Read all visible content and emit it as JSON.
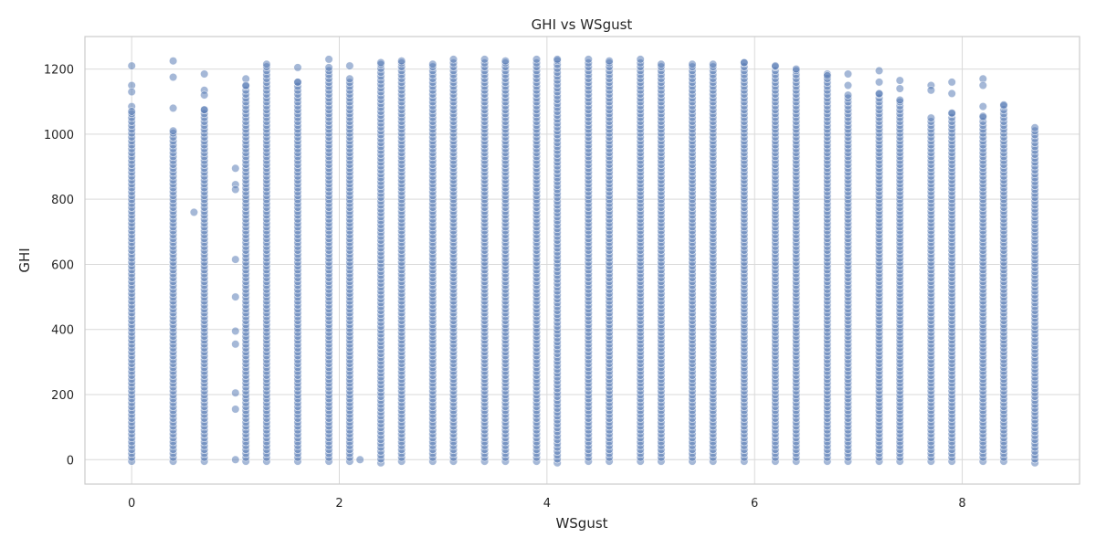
{
  "chart_data": {
    "type": "scatter",
    "title": "GHI vs WSgust",
    "xlabel": "WSgust",
    "ylabel": "GHI",
    "xlim": [
      -0.45,
      9.13
    ],
    "ylim": [
      -75,
      1300
    ],
    "x_ticks": [
      0,
      2,
      4,
      6,
      8
    ],
    "y_ticks": [
      0,
      200,
      400,
      600,
      800,
      1000,
      1200
    ],
    "grid": true,
    "legend": "none",
    "marker_color": "#4c72b0",
    "marker_alpha": 0.5,
    "columns": [
      {
        "x": 0.0,
        "ymin": -5,
        "ymax": 1210,
        "extra": [
          1210,
          1150,
          1130,
          1085,
          1070
        ]
      },
      {
        "x": 0.4,
        "ymin": -5,
        "ymax": 1225,
        "extra": [
          1225,
          1175,
          1080,
          1010
        ]
      },
      {
        "x": 0.7,
        "ymin": -5,
        "ymax": 1185,
        "extra": [
          1185,
          1135,
          1120,
          1075
        ]
      },
      {
        "x": 1.1,
        "ymin": -5,
        "ymax": 1170,
        "extra": [
          1170,
          1150
        ]
      },
      {
        "x": 1.3,
        "ymin": -5,
        "ymax": 1215,
        "extra": [
          1215
        ]
      },
      {
        "x": 1.6,
        "ymin": -5,
        "ymax": 1205,
        "extra": [
          1205,
          1160
        ]
      },
      {
        "x": 1.9,
        "ymin": -5,
        "ymax": 1230,
        "extra": [
          1230,
          1205
        ]
      },
      {
        "x": 2.1,
        "ymin": -5,
        "ymax": 1210,
        "extra": [
          1210,
          1170
        ]
      },
      {
        "x": 2.4,
        "ymin": -10,
        "ymax": 1220,
        "extra": [
          1220
        ]
      },
      {
        "x": 2.6,
        "ymin": -5,
        "ymax": 1225,
        "extra": [
          1225
        ]
      },
      {
        "x": 2.9,
        "ymin": -5,
        "ymax": 1215,
        "extra": [
          1215
        ]
      },
      {
        "x": 3.1,
        "ymin": -5,
        "ymax": 1230,
        "extra": [
          1230
        ]
      },
      {
        "x": 3.4,
        "ymin": -5,
        "ymax": 1230,
        "extra": [
          1230
        ]
      },
      {
        "x": 3.6,
        "ymin": -5,
        "ymax": 1225,
        "extra": [
          1225
        ]
      },
      {
        "x": 3.9,
        "ymin": -5,
        "ymax": 1230,
        "extra": [
          1230
        ]
      },
      {
        "x": 4.1,
        "ymin": -10,
        "ymax": 1230,
        "extra": [
          1230
        ]
      },
      {
        "x": 4.4,
        "ymin": -5,
        "ymax": 1230,
        "extra": [
          1230
        ]
      },
      {
        "x": 4.6,
        "ymin": -5,
        "ymax": 1225,
        "extra": [
          1225
        ]
      },
      {
        "x": 4.9,
        "ymin": -5,
        "ymax": 1230,
        "extra": [
          1230
        ]
      },
      {
        "x": 5.1,
        "ymin": -5,
        "ymax": 1215,
        "extra": [
          1215
        ]
      },
      {
        "x": 5.4,
        "ymin": -5,
        "ymax": 1215,
        "extra": [
          1215
        ]
      },
      {
        "x": 5.6,
        "ymin": -5,
        "ymax": 1215,
        "extra": [
          1215
        ]
      },
      {
        "x": 5.9,
        "ymin": -5,
        "ymax": 1220,
        "extra": [
          1220
        ]
      },
      {
        "x": 6.2,
        "ymin": -5,
        "ymax": 1210,
        "extra": [
          1210
        ]
      },
      {
        "x": 6.4,
        "ymin": -5,
        "ymax": 1200,
        "extra": [
          1200
        ]
      },
      {
        "x": 6.7,
        "ymin": -5,
        "ymax": 1185,
        "extra": [
          1185,
          1180
        ]
      },
      {
        "x": 6.9,
        "ymin": -5,
        "ymax": 1185,
        "extra": [
          1185,
          1150,
          1120
        ]
      },
      {
        "x": 7.2,
        "ymin": -5,
        "ymax": 1195,
        "extra": [
          1195,
          1160,
          1125
        ]
      },
      {
        "x": 7.4,
        "ymin": -5,
        "ymax": 1165,
        "extra": [
          1165,
          1140,
          1105
        ]
      },
      {
        "x": 7.7,
        "ymin": -5,
        "ymax": 1150,
        "extra": [
          1150,
          1135,
          1050
        ]
      },
      {
        "x": 7.9,
        "ymin": -5,
        "ymax": 1160,
        "extra": [
          1160,
          1125,
          1065
        ]
      },
      {
        "x": 8.2,
        "ymin": -5,
        "ymax": 1170,
        "extra": [
          1170,
          1150,
          1085,
          1055
        ]
      },
      {
        "x": 8.4,
        "ymin": -5,
        "ymax": 1090,
        "extra": [
          1090
        ]
      },
      {
        "x": 8.7,
        "ymin": -10,
        "ymax": 1020,
        "extra": [
          1020
        ]
      }
    ],
    "sparse_points": [
      {
        "x": 0.6,
        "y": 760
      },
      {
        "x": 1.0,
        "y": 895
      },
      {
        "x": 1.0,
        "y": 845
      },
      {
        "x": 1.0,
        "y": 830
      },
      {
        "x": 1.0,
        "y": 615
      },
      {
        "x": 1.0,
        "y": 500
      },
      {
        "x": 1.0,
        "y": 395
      },
      {
        "x": 1.0,
        "y": 355
      },
      {
        "x": 1.0,
        "y": 205
      },
      {
        "x": 1.0,
        "y": 155
      },
      {
        "x": 1.0,
        "y": 0
      },
      {
        "x": 2.2,
        "y": 0
      }
    ]
  }
}
